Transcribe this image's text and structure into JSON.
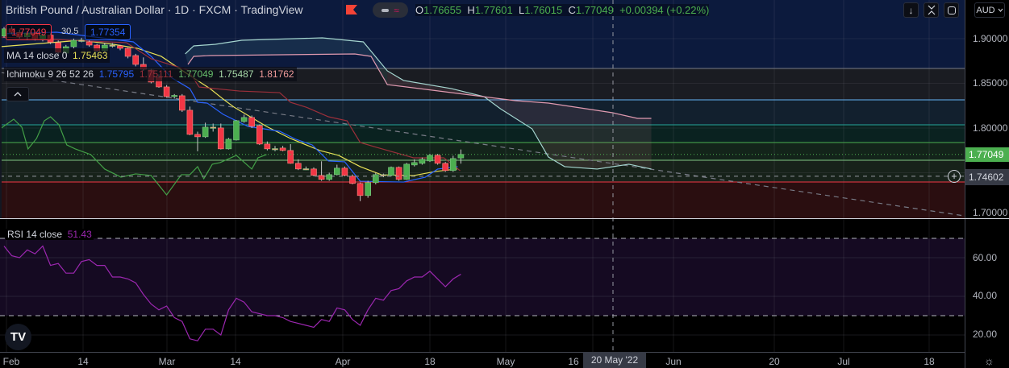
{
  "header": {
    "title": "British Pound / Australian Dollar · 1D · FXCM · TradingView",
    "ohlc": {
      "o_label": "O",
      "o": "1.76655",
      "h_label": "H",
      "h": "1.77601",
      "l_label": "L",
      "l": "1.76015",
      "c_label": "C",
      "c": "1.77049",
      "change": "+0.00394 (+0.22%)"
    },
    "flag_color": "#f44336"
  },
  "legend": {
    "sell_price": "1.77049",
    "spread": "30.5",
    "buy_price": "1.77354",
    "ma_label": "MA 14 close 0",
    "ma_value": "1.75463",
    "ichimoku_label": "Ichimoku 9 26 52 26",
    "ichimoku_values": [
      "1.75795",
      "1.75111",
      "1.77049",
      "1.75487",
      "1.81762"
    ],
    "rsi_label": "RSI 14 close",
    "rsi_value": "51.43"
  },
  "toolbar": {
    "scroll_down_icon": "arrow-down-icon",
    "collapse_icon": "collapse-icon",
    "fullscreen_icon": "fullscreen-icon",
    "currency": "AUD",
    "collapse_legend_icon": "chevron-up-icon",
    "settings_icon": "gear-icon",
    "logo": "TV"
  },
  "price_axis": {
    "ticks": [
      "1.90000",
      "1.85000",
      "1.80000",
      "1.70000"
    ],
    "last_price": "1.77049",
    "crosshair_price": "1.74602",
    "last_price_color": "#4caf50"
  },
  "rsi_axis": {
    "ticks": [
      "60.00",
      "40.00",
      "20.00"
    ]
  },
  "time_axis": {
    "ticks": [
      "Feb",
      "14",
      "Mar",
      "14",
      "Apr",
      "18",
      "May",
      "16",
      "Jun",
      "20",
      "Jul",
      "18"
    ],
    "crosshair_date": "20 May '22"
  },
  "chart_data": [
    {
      "type": "candlestick",
      "symbol": "GBPAUD",
      "interval": "1D",
      "ylim": [
        1.7,
        1.92
      ],
      "candles_ohlc": [
        [
          1.903,
          1.913,
          1.901,
          1.911
        ],
        [
          1.911,
          1.914,
          1.905,
          1.907
        ],
        [
          1.907,
          1.91,
          1.9,
          1.902
        ],
        [
          1.902,
          1.909,
          1.899,
          1.906
        ],
        [
          1.906,
          1.908,
          1.898,
          1.9
        ],
        [
          1.9,
          1.906,
          1.897,
          1.904
        ],
        [
          1.904,
          1.906,
          1.894,
          1.896
        ],
        [
          1.8955,
          1.898,
          1.882,
          1.8847
        ],
        [
          1.8838,
          1.893,
          1.881,
          1.891
        ],
        [
          1.891,
          1.9,
          1.889,
          1.8982
        ],
        [
          1.8982,
          1.901,
          1.896,
          1.8975
        ],
        [
          1.8964,
          1.898,
          1.891,
          1.8928
        ],
        [
          1.8928,
          1.894,
          1.885,
          1.8865
        ],
        [
          1.8865,
          1.895,
          1.884,
          1.8928
        ],
        [
          1.8928,
          1.895,
          1.89,
          1.8925
        ],
        [
          1.8919,
          1.893,
          1.887,
          1.8892
        ],
        [
          1.8892,
          1.89,
          1.878,
          1.8802
        ],
        [
          1.8811,
          1.883,
          1.869,
          1.8712
        ],
        [
          1.8712,
          1.879,
          1.864,
          1.8658
        ],
        [
          1.8649,
          1.866,
          1.85,
          1.8514
        ],
        [
          1.8568,
          1.86,
          1.845,
          1.846
        ],
        [
          1.846,
          1.848,
          1.834,
          1.8352
        ],
        [
          1.8355,
          1.838,
          1.833,
          1.8365
        ],
        [
          1.8361,
          1.838,
          1.818,
          1.8199
        ],
        [
          1.8199,
          1.824,
          1.792,
          1.7929
        ],
        [
          1.7929,
          1.796,
          1.774,
          1.7902
        ],
        [
          1.7902,
          1.806,
          1.789,
          1.801
        ],
        [
          1.8005,
          1.805,
          1.796,
          1.801
        ],
        [
          1.8001,
          1.805,
          1.776,
          1.7767
        ],
        [
          1.7767,
          1.789,
          1.776,
          1.7875
        ],
        [
          1.7866,
          1.809,
          1.786,
          1.8082
        ],
        [
          1.8073,
          1.815,
          1.806,
          1.8118
        ],
        [
          1.8118,
          1.814,
          1.8,
          1.8019
        ],
        [
          1.8028,
          1.804,
          1.781,
          1.7821
        ],
        [
          1.7821,
          1.785,
          1.775,
          1.7767
        ],
        [
          1.7765,
          1.78,
          1.774,
          1.777
        ],
        [
          1.7776,
          1.78,
          1.774,
          1.7749
        ],
        [
          1.7749,
          1.782,
          1.76,
          1.7605
        ],
        [
          1.7605,
          1.765,
          1.753,
          1.7542
        ],
        [
          1.7545,
          1.757,
          1.753,
          1.754
        ],
        [
          1.7542,
          1.756,
          1.746,
          1.747
        ],
        [
          1.747,
          1.7628,
          1.741,
          1.7425
        ],
        [
          1.7425,
          1.75,
          1.741,
          1.7479
        ],
        [
          1.7479,
          1.759,
          1.747,
          1.7551
        ],
        [
          1.7551,
          1.757,
          1.746,
          1.747
        ],
        [
          1.7461,
          1.748,
          1.737,
          1.738
        ],
        [
          1.738,
          1.739,
          1.7182,
          1.7245
        ],
        [
          1.7245,
          1.741,
          1.722,
          1.7389
        ],
        [
          1.7389,
          1.75,
          1.737,
          1.7479
        ],
        [
          1.7479,
          1.749,
          1.745,
          1.7475
        ],
        [
          1.747,
          1.757,
          1.746,
          1.756
        ],
        [
          1.756,
          1.757,
          1.741,
          1.7425
        ],
        [
          1.7425,
          1.761,
          1.742,
          1.7596
        ],
        [
          1.7587,
          1.765,
          1.757,
          1.7614
        ],
        [
          1.7605,
          1.767,
          1.759,
          1.765
        ],
        [
          1.7632,
          1.771,
          1.762,
          1.7695
        ],
        [
          1.7695,
          1.771,
          1.759,
          1.7605
        ],
        [
          1.7605,
          1.762,
          1.751,
          1.7524
        ],
        [
          1.7524,
          1.769,
          1.751,
          1.7659
        ],
        [
          1.76655,
          1.77601,
          1.76015,
          1.77049
        ]
      ],
      "candle_colors": {
        "up": "#4caf50",
        "down": "#f23645",
        "doji": "#f7a07a"
      },
      "series": [
        {
          "name": "MA 14 close 0",
          "color": "#e8e057",
          "points": [
            [
              -0.5,
              1.891
            ],
            [
              9.9,
              1.8982
            ],
            [
              14.1,
              1.8937
            ],
            [
              17.2,
              1.8892
            ],
            [
              20.3,
              1.8802
            ],
            [
              23.4,
              1.8622
            ],
            [
              26.6,
              1.8441
            ],
            [
              28.3,
              1.8324
            ],
            [
              29.7,
              1.8234
            ],
            [
              33.9,
              1.8018
            ],
            [
              37,
              1.7883
            ],
            [
              40.8,
              1.7748
            ],
            [
              43.2,
              1.7694
            ],
            [
              46,
              1.7568
            ],
            [
              48.75,
              1.7477
            ],
            [
              52.9,
              1.7468
            ],
            [
              55.7,
              1.7514
            ],
            [
              58.5,
              1.7541
            ]
          ]
        },
        {
          "name": "Conversion",
          "color": "#2962ff",
          "points": [
            [
              -0.5,
              1.9054
            ],
            [
              6.8,
              1.9072
            ],
            [
              16.7,
              1.8964
            ],
            [
              19,
              1.8802
            ],
            [
              21.7,
              1.8559
            ],
            [
              24,
              1.8441
            ],
            [
              25,
              1.8288
            ],
            [
              26.25,
              1.8279
            ],
            [
              28.3,
              1.8153
            ],
            [
              31.5,
              1.8018
            ],
            [
              35.6,
              1.7964
            ],
            [
              37.7,
              1.7874
            ],
            [
              39.8,
              1.7811
            ],
            [
              41.9,
              1.7631
            ],
            [
              44,
              1.7622
            ],
            [
              46,
              1.7405
            ],
            [
              51.6,
              1.7396
            ],
            [
              54.4,
              1.745
            ],
            [
              56,
              1.7541
            ],
            [
              58.6,
              1.7568
            ]
          ]
        },
        {
          "name": "Base",
          "color": "#9b2f3a",
          "points": [
            [
              -0.5,
              1.9018
            ],
            [
              15.8,
              1.8955
            ],
            [
              19,
              1.8775
            ],
            [
              23.75,
              1.8649
            ],
            [
              25.2,
              1.8459
            ],
            [
              30.4,
              1.8414
            ],
            [
              35.6,
              1.8396
            ],
            [
              37,
              1.8288
            ],
            [
              39,
              1.8234
            ],
            [
              41.9,
              1.8126
            ],
            [
              44.3,
              1.8081
            ],
            [
              46,
              1.7838
            ],
            [
              48.1,
              1.7784
            ],
            [
              52.9,
              1.7667
            ],
            [
              56.8,
              1.7667
            ],
            [
              58.9,
              1.7523
            ]
          ]
        },
        {
          "name": "Lagging Span",
          "color": "#43a047",
          "points": [
            [
              -0.5,
              1.7991
            ],
            [
              1.25,
              1.8099
            ],
            [
              2.3,
              1.8009
            ],
            [
              3.1,
              1.7766
            ],
            [
              4.2,
              1.7883
            ],
            [
              5.2,
              1.8081
            ],
            [
              6,
              1.8126
            ],
            [
              7.1,
              1.8036
            ],
            [
              8.1,
              1.7811
            ],
            [
              9.2,
              1.7766
            ],
            [
              11.2,
              1.7703
            ],
            [
              13,
              1.7541
            ],
            [
              15.1,
              1.7451
            ],
            [
              17,
              1.7487
            ],
            [
              19,
              1.7469
            ],
            [
              21,
              1.7252
            ],
            [
              22.9,
              1.7478
            ],
            [
              24,
              1.7478
            ],
            [
              25,
              1.7568
            ],
            [
              25.8,
              1.7433
            ],
            [
              26.9,
              1.7595
            ],
            [
              27.9,
              1.7613
            ],
            [
              30,
              1.7694
            ],
            [
              32,
              1.7541
            ],
            [
              32.8,
              1.7667
            ],
            [
              33.9,
              1.7703
            ]
          ]
        },
        {
          "name": "Lead 1",
          "color": "#a5d6d0",
          "points": [
            [
              23.4,
              1.8829
            ],
            [
              24.5,
              1.8919
            ],
            [
              27.3,
              1.8937
            ],
            [
              30.7,
              1.8982
            ],
            [
              41.1,
              1.9009
            ],
            [
              46.4,
              1.8964
            ],
            [
              49.5,
              1.864
            ],
            [
              51.6,
              1.8532
            ],
            [
              57.8,
              1.8441
            ],
            [
              62,
              1.8351
            ],
            [
              64.1,
              1.8216
            ],
            [
              68.2,
              1.7991
            ],
            [
              70.3,
              1.7676
            ],
            [
              72.4,
              1.7568
            ],
            [
              76.6,
              1.7541
            ],
            [
              80.7,
              1.7595
            ],
            [
              83.6,
              1.7541
            ]
          ]
        },
        {
          "name": "Lead 2",
          "color": "#e09ab0",
          "points": [
            [
              23.75,
              1.8712
            ],
            [
              24.5,
              1.8802
            ],
            [
              26.6,
              1.8811
            ],
            [
              45.3,
              1.8829
            ],
            [
              47.4,
              1.8802
            ],
            [
              49.5,
              1.8486
            ],
            [
              66.1,
              1.8306
            ],
            [
              70.3,
              1.8279
            ],
            [
              78.6,
              1.8171
            ],
            [
              81.8,
              1.8108
            ],
            [
              83.6,
              1.8108
            ]
          ]
        }
      ],
      "trendline": {
        "from": [
          -0.5,
          1.8622
        ],
        "to": [
          124,
          1.7018
        ],
        "style": "dashed",
        "color": "#787b86"
      },
      "fib_levels": [
        {
          "price": 1.8667,
          "color": "#787b86",
          "fill": "#1a1c22"
        },
        {
          "price": 1.8315,
          "color": "#64b5f6",
          "fill": "#12202e"
        },
        {
          "price": 1.8036,
          "color": "#26a69a",
          "fill": "#0a2220"
        },
        {
          "price": 1.7838,
          "color": "#4caf50",
          "fill": "#13241a"
        },
        {
          "price": 1.764,
          "color": "#81c784",
          "fill": "#17221a"
        },
        {
          "price": 1.7396,
          "color": "#f23645",
          "fill": "#2a0e10"
        }
      ],
      "top_fill": "#0c1a3d",
      "last_price_line": 1.77049,
      "crosshair_price": 1.74602
    },
    {
      "type": "line",
      "name": "RSI 14 close",
      "color": "#9c27b0",
      "ylim": [
        10,
        78
      ],
      "bands": {
        "upper": 70,
        "lower": 30,
        "fill": "#150a22"
      },
      "values": [
        66,
        61,
        60,
        64,
        62,
        66,
        56,
        57,
        52,
        52,
        58,
        59,
        56,
        56,
        50,
        50,
        49,
        47,
        41,
        36,
        33,
        35,
        29,
        27,
        18,
        17,
        23,
        23,
        20,
        33,
        39,
        37,
        32,
        31,
        30,
        30,
        29,
        27,
        26,
        25,
        24,
        28,
        27,
        34,
        33,
        28,
        25,
        33,
        39,
        38,
        43,
        44,
        48,
        50,
        50,
        53,
        49,
        45,
        49,
        51.43
      ]
    }
  ]
}
